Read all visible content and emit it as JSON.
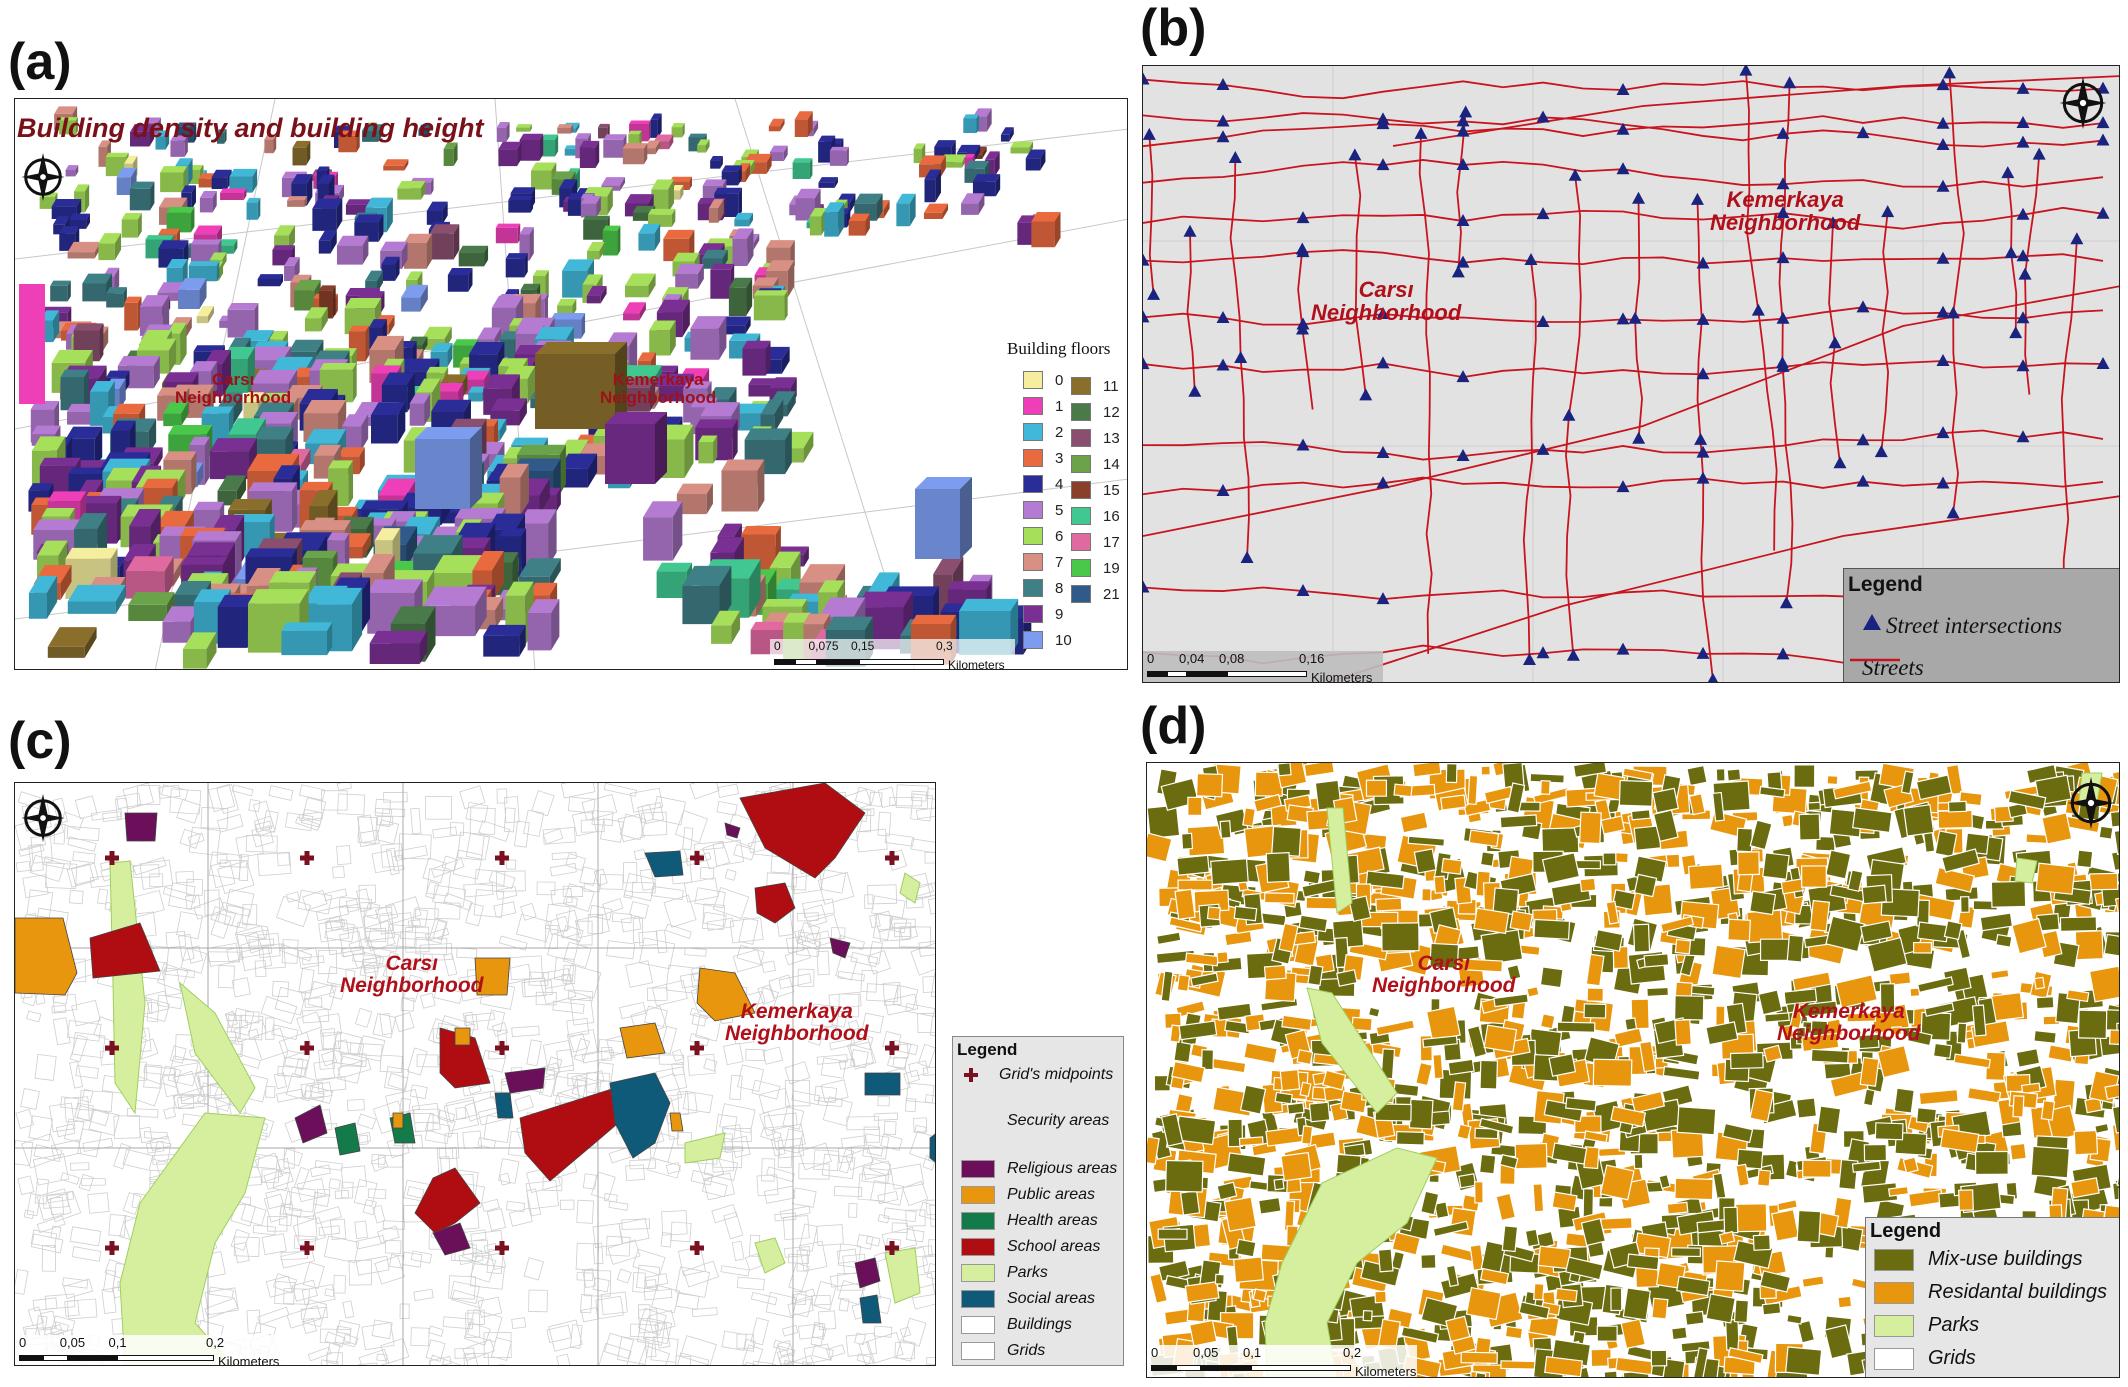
{
  "panels": {
    "a": {
      "label": "(a)",
      "title": "Building density and building height",
      "neighborhoods": [
        "Carsı\nNeighborhood",
        "Kemerkaya\nNeighborhood"
      ],
      "legend_title": "Building floors",
      "floors_col1": [
        {
          "label": "0",
          "color": "#f5ee9e"
        },
        {
          "label": "1",
          "color": "#ee3fb8"
        },
        {
          "label": "2",
          "color": "#41b8d8"
        },
        {
          "label": "3",
          "color": "#ea6a3f"
        },
        {
          "label": "4",
          "color": "#2a2d97"
        },
        {
          "label": "5",
          "color": "#b57bd3"
        },
        {
          "label": "6",
          "color": "#a6e05a"
        },
        {
          "label": "7",
          "color": "#d99084"
        },
        {
          "label": "8",
          "color": "#3f7f86"
        },
        {
          "label": "9",
          "color": "#7a2f93"
        },
        {
          "label": "10",
          "color": "#7c9cf0"
        }
      ],
      "floors_col2": [
        {
          "label": "11",
          "color": "#8a6f2c"
        },
        {
          "label": "12",
          "color": "#4a7a4a"
        },
        {
          "label": "13",
          "color": "#8a4f6f"
        },
        {
          "label": "14",
          "color": "#6aa34a"
        },
        {
          "label": "15",
          "color": "#8a3f2a"
        },
        {
          "label": "16",
          "color": "#40c890"
        },
        {
          "label": "17",
          "color": "#e06aa0"
        },
        {
          "label": "19",
          "color": "#4ac84a"
        },
        {
          "label": "21",
          "color": "#2f5a8a"
        }
      ],
      "scale_ticks": [
        "0",
        "0,075",
        "0,15",
        "0,3"
      ],
      "scale_unit": "Kilometers"
    },
    "b": {
      "label": "(b)",
      "neighborhoods": [
        "Carsı\nNeighborhood",
        "Kemerkaya\nNeighborhood"
      ],
      "legend_title": "Legend",
      "legend_items": [
        "Street intersections",
        "Streets"
      ],
      "colors": {
        "street": "#c8141e",
        "intersection": "#1a237e",
        "background": "#e2e2e2"
      },
      "scale_ticks": [
        "0",
        "0,04",
        "0,08",
        "0,16"
      ],
      "scale_unit": "Kilometers"
    },
    "c": {
      "label": "(c)",
      "neighborhoods": [
        "Carsı\nNeighborhood",
        "Kemerkaya\nNeighborhood"
      ],
      "legend_title": "Legend",
      "legend_items": [
        {
          "label": "Grid's midpoints",
          "color": "#7a1020"
        },
        {
          "label": "Security areas",
          "color": ""
        },
        {
          "label": "Religious areas",
          "color": "#6b0f5a"
        },
        {
          "label": "Public areas",
          "color": "#e8960e"
        },
        {
          "label": "Health areas",
          "color": "#137a4a"
        },
        {
          "label": "School areas",
          "color": "#b00d12"
        },
        {
          "label": "Parks",
          "color": "#d6ef9e"
        },
        {
          "label": "Social areas",
          "color": "#0f5a78"
        },
        {
          "label": "Buildings",
          "color": "#ffffff"
        },
        {
          "label": "Grids",
          "color": "#ffffff"
        }
      ],
      "scale_ticks": [
        "0",
        "0,05",
        "0,1",
        "0,2"
      ],
      "scale_unit": "Kilometers"
    },
    "d": {
      "label": "(d)",
      "neighborhoods": [
        "Carsı\nNeighborhood",
        "Kemerkaya\nNeighborhood"
      ],
      "legend_title": "Legend",
      "legend_items": [
        {
          "label": "Mix-use buildings",
          "color": "#6b6b10"
        },
        {
          "label": "Residantal buildings",
          "color": "#e8960e"
        },
        {
          "label": "Parks",
          "color": "#d6ef9e"
        },
        {
          "label": "Grids",
          "color": "#ffffff"
        }
      ],
      "scale_ticks": [
        "0",
        "0,05",
        "0,1",
        "0,2"
      ],
      "scale_unit": "Kilometers"
    }
  }
}
